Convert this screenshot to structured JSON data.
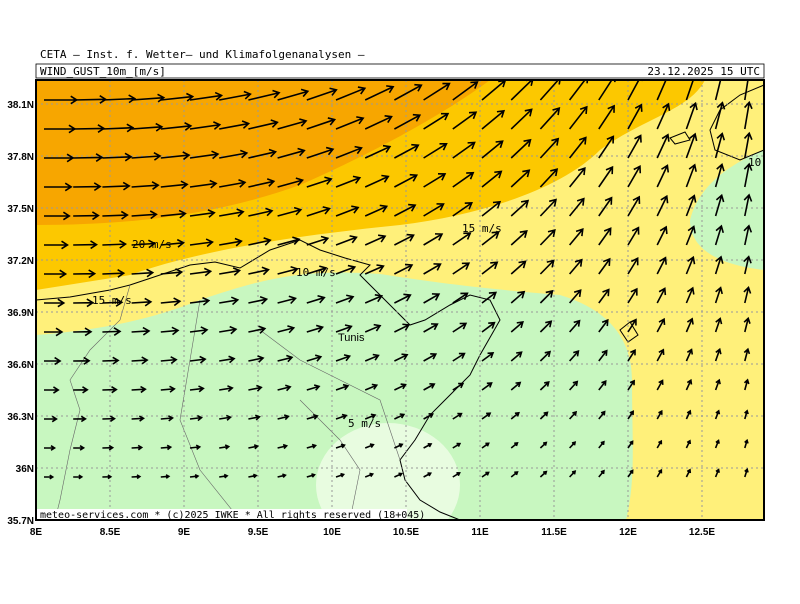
{
  "header": {
    "institute": "CETA – Inst. f. Wetter– und Klimafolgenanalysen –",
    "variable": "WIND_GUST_10m_[m/s]",
    "datetime": "23.12.2025 15 UTC"
  },
  "axes": {
    "lon_ticks": [
      "8E",
      "8.5E",
      "9E",
      "9.5E",
      "10E",
      "10.5E",
      "11E",
      "11.5E",
      "12E",
      "12.5E"
    ],
    "lat_ticks": [
      "35.7N",
      "36N",
      "36.3N",
      "36.6N",
      "36.9N",
      "37.2N",
      "37.5N",
      "37.8N",
      "38.1N"
    ]
  },
  "contour_labels": [
    "20 m/s",
    "15 m/s",
    "10 m/s",
    "15 m/s",
    "5 m/s",
    "10"
  ],
  "place": "Tunis",
  "footer": "meteo-services.com * (c)2025 IWKE * All rights reserved (18+045)"
}
